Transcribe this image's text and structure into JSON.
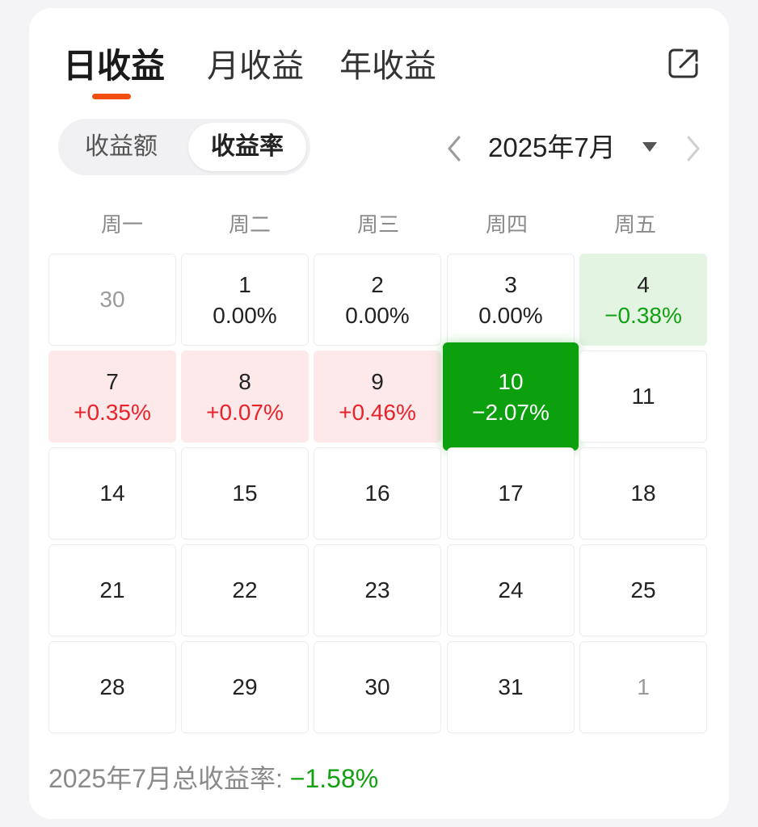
{
  "tabs": [
    {
      "label": "日收益",
      "active": true
    },
    {
      "label": "月收益",
      "active": false
    },
    {
      "label": "年收益",
      "active": false
    }
  ],
  "icons": {
    "share": "share-icon",
    "prev": "chevron-left-icon",
    "next": "chevron-right-icon",
    "caret": "caret-down-icon"
  },
  "segment": {
    "options": [
      "收益额",
      "收益率"
    ],
    "selected": "收益率"
  },
  "month_nav": {
    "label": "2025年7月"
  },
  "weekdays": [
    "周一",
    "周二",
    "周三",
    "周四",
    "周五"
  ],
  "colors": {
    "accent": "#f24e12",
    "up": "#e8232a",
    "up_bg": "#fde8ea",
    "down": "#11a011",
    "down_bg": "#e4f4e3",
    "down_strong": "#0ca00e"
  },
  "calendar": {
    "rows": [
      [
        {
          "day": "30",
          "rate": "",
          "state": "muted"
        },
        {
          "day": "1",
          "rate": "0.00%",
          "state": "flat"
        },
        {
          "day": "2",
          "rate": "0.00%",
          "state": "flat"
        },
        {
          "day": "3",
          "rate": "0.00%",
          "state": "flat"
        },
        {
          "day": "4",
          "rate": "−0.38%",
          "state": "down"
        }
      ],
      [
        {
          "day": "7",
          "rate": "+0.35%",
          "state": "up"
        },
        {
          "day": "8",
          "rate": "+0.07%",
          "state": "up"
        },
        {
          "day": "9",
          "rate": "+0.46%",
          "state": "up"
        },
        {
          "day": "10",
          "rate": "−2.07%",
          "state": "selected-down"
        },
        {
          "day": "11",
          "rate": "",
          "state": "none"
        }
      ],
      [
        {
          "day": "14",
          "rate": "",
          "state": "none"
        },
        {
          "day": "15",
          "rate": "",
          "state": "none"
        },
        {
          "day": "16",
          "rate": "",
          "state": "none"
        },
        {
          "day": "17",
          "rate": "",
          "state": "none"
        },
        {
          "day": "18",
          "rate": "",
          "state": "none"
        }
      ],
      [
        {
          "day": "21",
          "rate": "",
          "state": "none"
        },
        {
          "day": "22",
          "rate": "",
          "state": "none"
        },
        {
          "day": "23",
          "rate": "",
          "state": "none"
        },
        {
          "day": "24",
          "rate": "",
          "state": "none"
        },
        {
          "day": "25",
          "rate": "",
          "state": "none"
        }
      ],
      [
        {
          "day": "28",
          "rate": "",
          "state": "none"
        },
        {
          "day": "29",
          "rate": "",
          "state": "none"
        },
        {
          "day": "30",
          "rate": "",
          "state": "none"
        },
        {
          "day": "31",
          "rate": "",
          "state": "none"
        },
        {
          "day": "1",
          "rate": "",
          "state": "muted"
        }
      ]
    ]
  },
  "summary": {
    "label": "2025年7月总收益率: ",
    "value": "−1.58%"
  }
}
